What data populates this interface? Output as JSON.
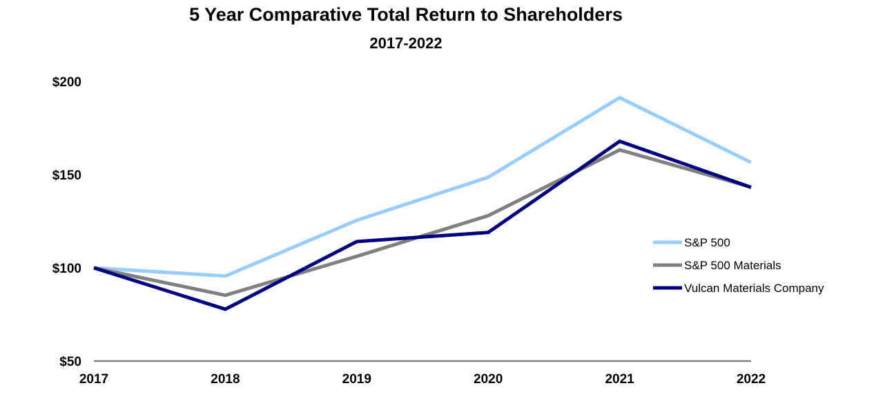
{
  "chart_data": {
    "type": "line",
    "title": "5 Year Comparative Total Return to Shareholders",
    "subtitle": "2017-2022",
    "xlabel": "",
    "ylabel": "",
    "categories": [
      "2017",
      "2018",
      "2019",
      "2020",
      "2021",
      "2022"
    ],
    "ylim": [
      50,
      200
    ],
    "yticks": [
      50,
      100,
      150,
      200
    ],
    "ytick_labels": [
      "$50",
      "$100",
      "$150",
      "$200"
    ],
    "grid": false,
    "legend_position": "right",
    "series": [
      {
        "name": "S&P 500",
        "color": "#99CCFF",
        "values": [
          100,
          95.6,
          125.5,
          148.6,
          191.3,
          156.6
        ]
      },
      {
        "name": "S&P 500 Materials",
        "color": "#808080",
        "values": [
          100,
          85.3,
          106.2,
          128,
          163.3,
          143.3
        ]
      },
      {
        "name": "Vulcan Materials Company",
        "color": "#000080",
        "values": [
          100,
          77.8,
          114.1,
          119,
          167.9,
          143.2
        ]
      }
    ]
  }
}
